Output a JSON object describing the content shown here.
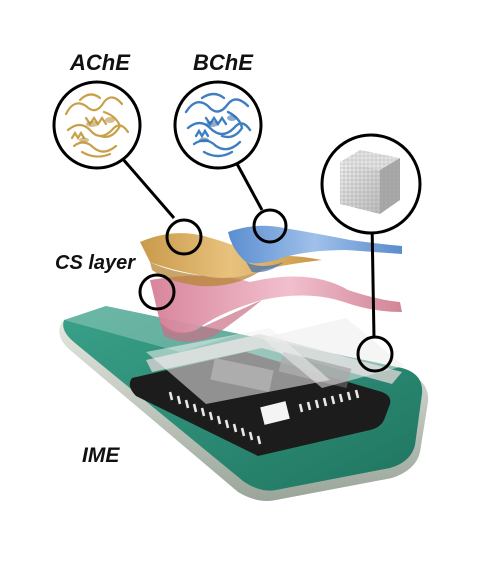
{
  "labels": {
    "ache": "AChE",
    "bche": "BChE",
    "cs_layer": "CS layer",
    "ime": "IME"
  },
  "colors": {
    "ache_protein": "#c8a049",
    "bche_protein": "#3f7fc0",
    "ache_layer": "#d9a553",
    "bche_layer": "#6f9fd6",
    "cs_layer": "#d98ea0",
    "substrate": "#2b8d75",
    "electrode": "#1c1c1c",
    "callout": "#000000"
  },
  "icons": {
    "ache": "ache-protein-structure-icon",
    "bche": "bche-protein-structure-icon",
    "cube": "porous-cube-icon"
  }
}
